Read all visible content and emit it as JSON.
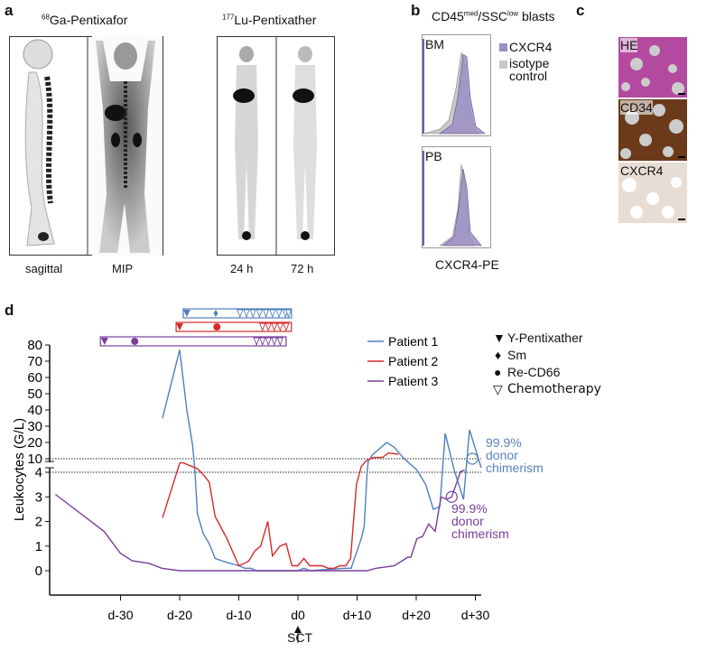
{
  "panels": {
    "a": {
      "letter": "a",
      "ga_title_sup": "68",
      "ga_title": "Ga-Pentixafor",
      "lu_title_sup": "177",
      "lu_title": "Lu-Pentixather",
      "labels": [
        "sagittal",
        "MIP",
        "24 h",
        "72 h"
      ]
    },
    "b": {
      "letter": "b",
      "title_pre": "CD45",
      "title_sup1": "med",
      "title_mid": "/SSC",
      "title_sup2": "low",
      "title_post": " blasts",
      "plots": [
        "BM",
        "PB"
      ],
      "legend": [
        "CXCR4",
        "isotype control"
      ],
      "xlabel": "CXCR4-PE",
      "colors": {
        "cxcr4": "#9b8ec4",
        "isotype": "#c8c8c8"
      }
    },
    "c": {
      "letter": "c",
      "stains": [
        "HE",
        "CD34",
        "CXCR4"
      ]
    },
    "d": {
      "letter": "d",
      "sct_label": "SCT",
      "symbol_legend": [
        "Y-Pentixather",
        "Sm",
        "Re-CD66",
        "Chemotherapy"
      ],
      "chimerism_label": [
        "99.9%",
        "donor",
        "chimerism"
      ]
    }
  },
  "chart_data": {
    "type": "line",
    "title": "",
    "xlabel": "",
    "ylabel": "Leukocytes (G/L)",
    "x_units": "days relative to SCT",
    "xticks": [
      -30,
      -20,
      -10,
      0,
      10,
      20,
      30
    ],
    "xtick_labels": [
      "d-30",
      "d-20",
      "d-10",
      "d0",
      "d+10",
      "d+20",
      "d+30"
    ],
    "yticks_lower": [
      0,
      1,
      2,
      3,
      4
    ],
    "yticks_upper": [
      10,
      20,
      30,
      40,
      50,
      60,
      70,
      80
    ],
    "y_axis_break": [
      4,
      10
    ],
    "reference_lines": [
      4,
      10
    ],
    "legend_placement": "top-right",
    "series": [
      {
        "name": "Patient 1",
        "color": "#4f7fbf",
        "x": [
          -22.9,
          -20,
          -18.8,
          -17.8,
          -17.4,
          -17,
          -16,
          -15,
          -14,
          -12.2,
          -10,
          -9,
          -8,
          -7,
          0,
          1,
          2,
          8,
          9,
          10.7,
          11.2,
          11.7,
          11.9,
          12.7,
          15,
          16.3,
          17.8,
          20.1,
          21.6,
          22.9,
          24,
          24.9,
          26.4,
          28,
          29,
          31
        ],
        "y": [
          35,
          77,
          40,
          18,
          4,
          2.3,
          1.5,
          1.1,
          0.5,
          0.35,
          0.2,
          0.1,
          0.1,
          0,
          0,
          0.1,
          0,
          0.1,
          0.1,
          1.3,
          1.8,
          4,
          9,
          12.8,
          20,
          17,
          10.6,
          5,
          3.5,
          2.5,
          2.6,
          25.6,
          5.2,
          2.9,
          27.8,
          6
        ]
      },
      {
        "name": "Patient 2",
        "color": "#d62a2a",
        "x": [
          -22.9,
          -20,
          -19.5,
          -17.8,
          -17,
          -16,
          -15,
          -14,
          -12,
          -10,
          -9,
          -8.3,
          -7.3,
          -6.3,
          -5.1,
          -4.3,
          -3.05,
          -2,
          -1,
          0,
          1,
          2,
          4.1,
          5.1,
          6.1,
          7.1,
          8.1,
          8.9,
          9.9,
          10.7,
          11.5,
          12.7,
          14.3,
          15.3,
          17
        ],
        "y": [
          2.15,
          8,
          8.3,
          6.5,
          5.6,
          3.9,
          3.6,
          2.2,
          1.3,
          0.2,
          0.3,
          0.4,
          0.8,
          1.0,
          2.0,
          0.6,
          1.0,
          1.1,
          0.2,
          0.2,
          0.5,
          0.2,
          0.2,
          0.1,
          0.1,
          0.2,
          0.2,
          0.5,
          3.5,
          6.5,
          9,
          10.8,
          10.8,
          13.5,
          12.8
        ]
      },
      {
        "name": "Patient 3",
        "color": "#7a3e9d",
        "x": [
          -41,
          -32.8,
          -30,
          -28,
          -25.2,
          -23,
          -20,
          11.7,
          13.2,
          14.8,
          16.3,
          17.6,
          18.6,
          19.1,
          20.1,
          21.1,
          22.1,
          23.2,
          24.2,
          25.2,
          26,
          27.5,
          28.2
        ],
        "y": [
          3.1,
          1.6,
          0.7,
          0.4,
          0.3,
          0.1,
          0,
          0,
          0.1,
          0.15,
          0.2,
          0.4,
          0.55,
          0.55,
          1.3,
          1.4,
          1.9,
          1.6,
          3.0,
          2.9,
          3.0,
          4.3,
          5
        ]
      }
    ],
    "annotations": [
      {
        "series": "Patient 1",
        "x": 29.5,
        "y": 10,
        "text": "99.9% donor chimerism"
      },
      {
        "series": "Patient 3",
        "x": 26,
        "y": 3.0,
        "text": "99.9% donor chimerism"
      },
      {
        "x": 0,
        "text": "SCT"
      }
    ],
    "treatment_timelines": [
      {
        "series": "Patient 1",
        "start": -19.4,
        "end": -1.1,
        "y_pentixather": [
          -18.8
        ],
        "sm": [
          -13.9
        ],
        "re_cd66": [],
        "chemotherapy": [
          -9.8,
          -8.7,
          -7.6,
          -6.5,
          -5.4,
          -4.3,
          -3.2,
          -2.1,
          -1.6
        ]
      },
      {
        "series": "Patient 2",
        "start": -20.6,
        "end": -1.1,
        "y_pentixather": [
          -20
        ],
        "sm": [],
        "re_cd66": [
          -13.7
        ],
        "chemotherapy": [
          -6,
          -5,
          -4,
          -3,
          -2
        ]
      },
      {
        "series": "Patient 3",
        "start": -33.4,
        "end": -2,
        "y_pentixather": [
          -32.7
        ],
        "sm": [],
        "re_cd66": [
          -27.6
        ],
        "chemotherapy": [
          -7,
          -6,
          -5,
          -4,
          -3
        ]
      }
    ]
  }
}
